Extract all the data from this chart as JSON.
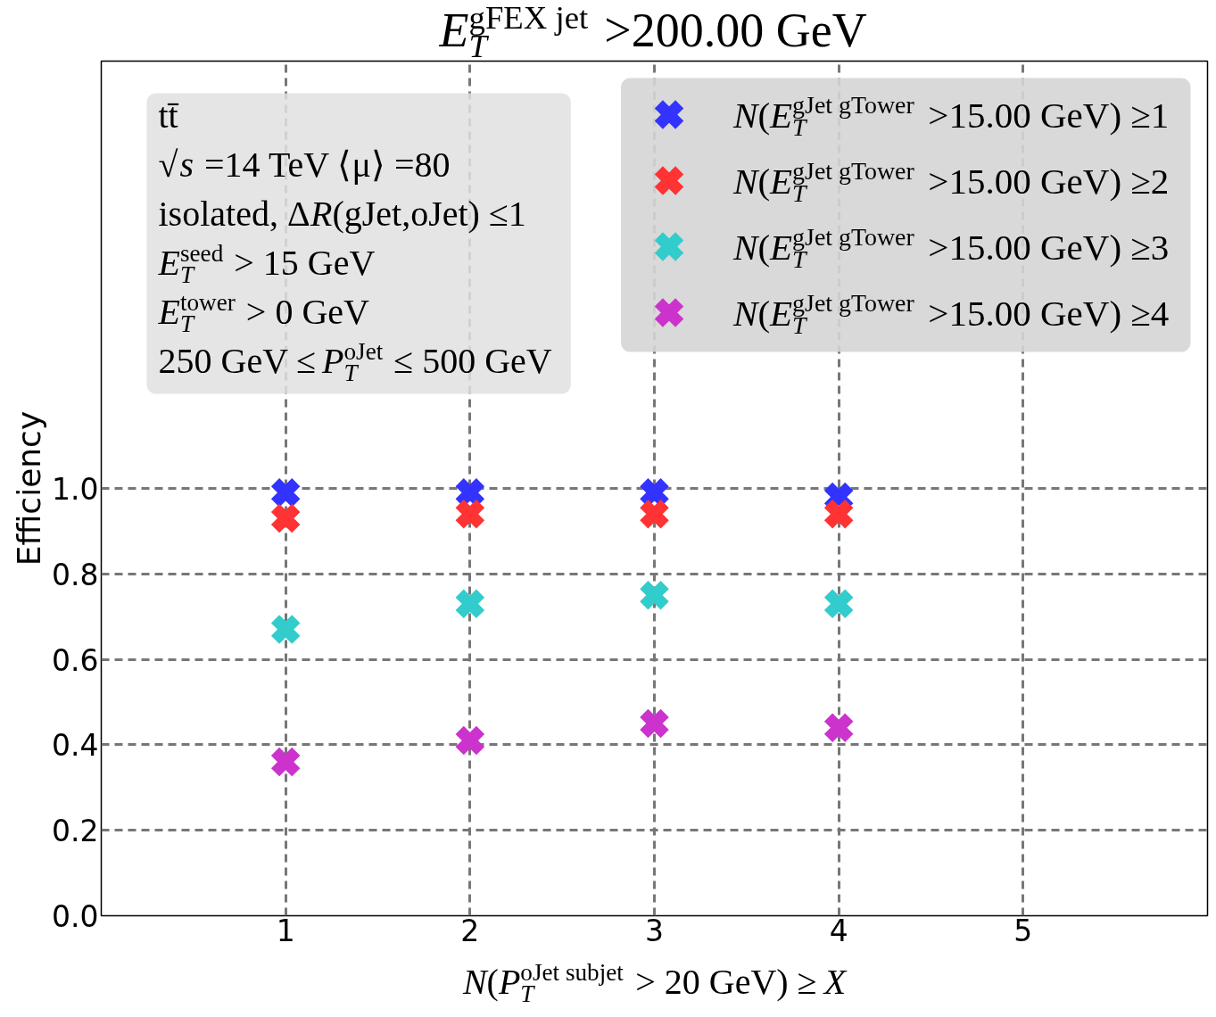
{
  "chart_data": {
    "type": "scatter",
    "title": "E$_{T}$$^{gFEX jet}$ >200.00 GeV",
    "xlabel": "N(P$_{T}$$^{oJet subjet}$ > 20 GeV) ≥X",
    "ylabel": "Efficiency",
    "annotations": [
      "tt̄",
      "√s =14 TeV ⟨μ⟩ =80",
      "isolated, ΔR(gJet,oJet) ≤1",
      "E$_{T}$$^{seed}$ > 15 GeV",
      "E$_{T}$$^{tower}$ > 0 GeV",
      "250 GeV ≤P$_{T}$$^{oJet}$ ≤ 500 GeV"
    ],
    "x": [
      1,
      2,
      3,
      4
    ],
    "series": [
      {
        "name": "N(E$_{T}$$^{gJet gTower}$ >15.00 GeV) ≥1",
        "color": "#3333ff",
        "values": [
          0.99,
          0.99,
          0.99,
          0.98
        ]
      },
      {
        "name": "N(E$_{T}$$^{gJet gTower}$ >15.00 GeV) ≥2",
        "color": "#ff3333",
        "values": [
          0.93,
          0.94,
          0.94,
          0.94
        ]
      },
      {
        "name": "N(E$_{T}$$^{gJet gTower}$ >15.00 GeV) ≥3",
        "color": "#33cccc",
        "values": [
          0.67,
          0.73,
          0.75,
          0.73
        ]
      },
      {
        "name": "N(E$_{T}$$^{gJet gTower}$ >15.00 GeV) ≥4",
        "color": "#cc33cc",
        "values": [
          0.36,
          0.41,
          0.45,
          0.44
        ]
      }
    ],
    "xlim": [
      0,
      6
    ],
    "ylim": [
      0,
      2.0
    ],
    "xticks": [
      1,
      2,
      3,
      4,
      5
    ],
    "yticks": [
      {
        "value": 0,
        "label": "0.0"
      },
      0.2,
      0.4,
      0.6,
      0.8,
      {
        "value": 1,
        "label": "1.0"
      }
    ],
    "grid": true,
    "legend": "top right",
    "marker": "cross"
  }
}
